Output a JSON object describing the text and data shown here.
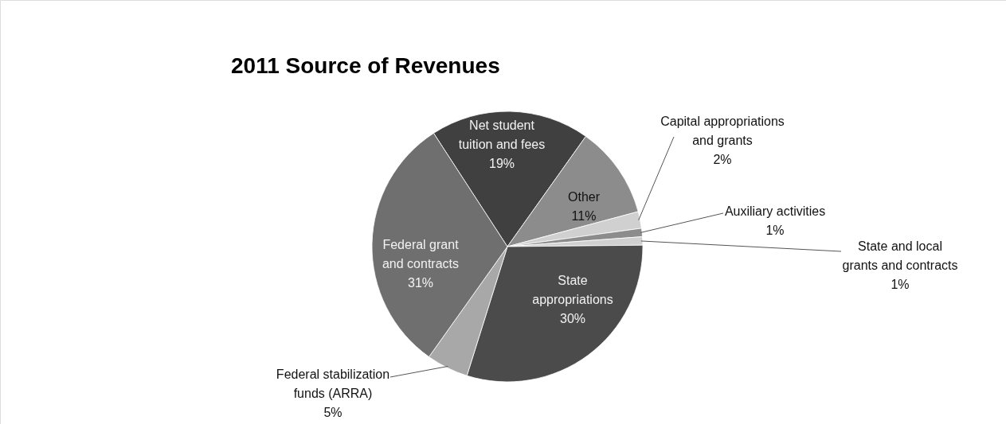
{
  "chart_data": {
    "type": "pie",
    "title": "2011 Source of Revenues",
    "categories": [
      "Net student tuition and fees",
      "Other",
      "Capital appropriations and grants",
      "Auxiliary activities",
      "State and local grants and contracts",
      "State appropriations",
      "Federal stabilization funds (ARRA)",
      "Federal grant and contracts"
    ],
    "values": [
      19,
      11,
      2,
      1,
      1,
      30,
      5,
      31
    ],
    "value_labels": [
      "19%",
      "11%",
      "2%",
      "1%",
      "1%",
      "30%",
      "5%",
      "31%"
    ],
    "colors": [
      "#404040",
      "#8c8c8c",
      "#d0d0d0",
      "#8c8c8c",
      "#d0d0d0",
      "#4b4b4b",
      "#a8a8a8",
      "#6f6f6f"
    ],
    "legend": false
  }
}
